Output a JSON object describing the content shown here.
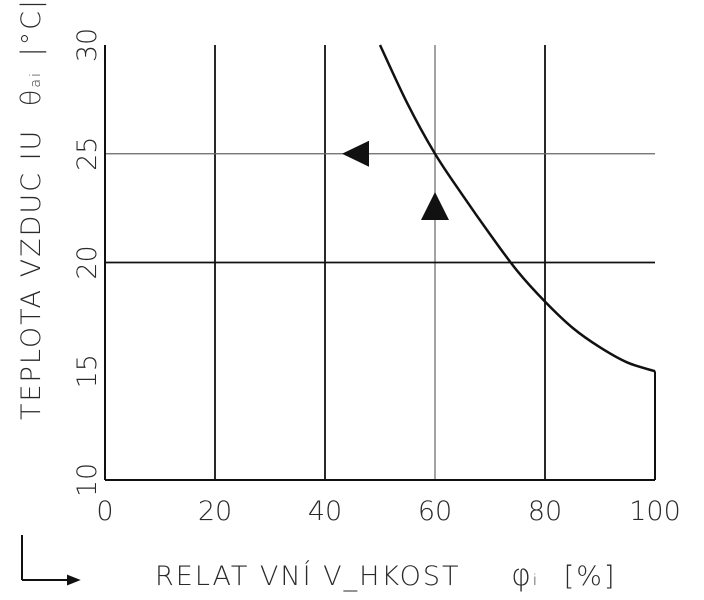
{
  "chart_data": {
    "type": "line",
    "xlabel": "RELAT VNÍ V_HKOST",
    "xlabel_symbol": "φ",
    "xlabel_sub": "i",
    "xlabel_unit": "[%]",
    "ylabel": "TEPLOTA VZDUC IU",
    "ylabel_symbol": "θ",
    "ylabel_sub": "ai",
    "ylabel_unit": "|°C|",
    "xlim": [
      0,
      100
    ],
    "ylim": [
      10,
      30
    ],
    "x_ticks": [
      "0",
      "20",
      "40",
      "60",
      "80",
      "100"
    ],
    "y_ticks": [
      "10",
      "15",
      "20",
      "25",
      "30"
    ],
    "grid": true,
    "series": [
      {
        "x": [
          50,
          55,
          60,
          65,
          70,
          75,
          80,
          85,
          90,
          95,
          100
        ],
        "y": [
          30,
          27.3,
          25,
          23.1,
          21.3,
          19.6,
          18.2,
          17,
          16.1,
          15.4,
          15
        ]
      }
    ],
    "markers": [
      {
        "shape": "triangle-left",
        "x": 48,
        "y": 25
      },
      {
        "shape": "triangle-up",
        "x": 60,
        "y": 22.6
      }
    ]
  }
}
